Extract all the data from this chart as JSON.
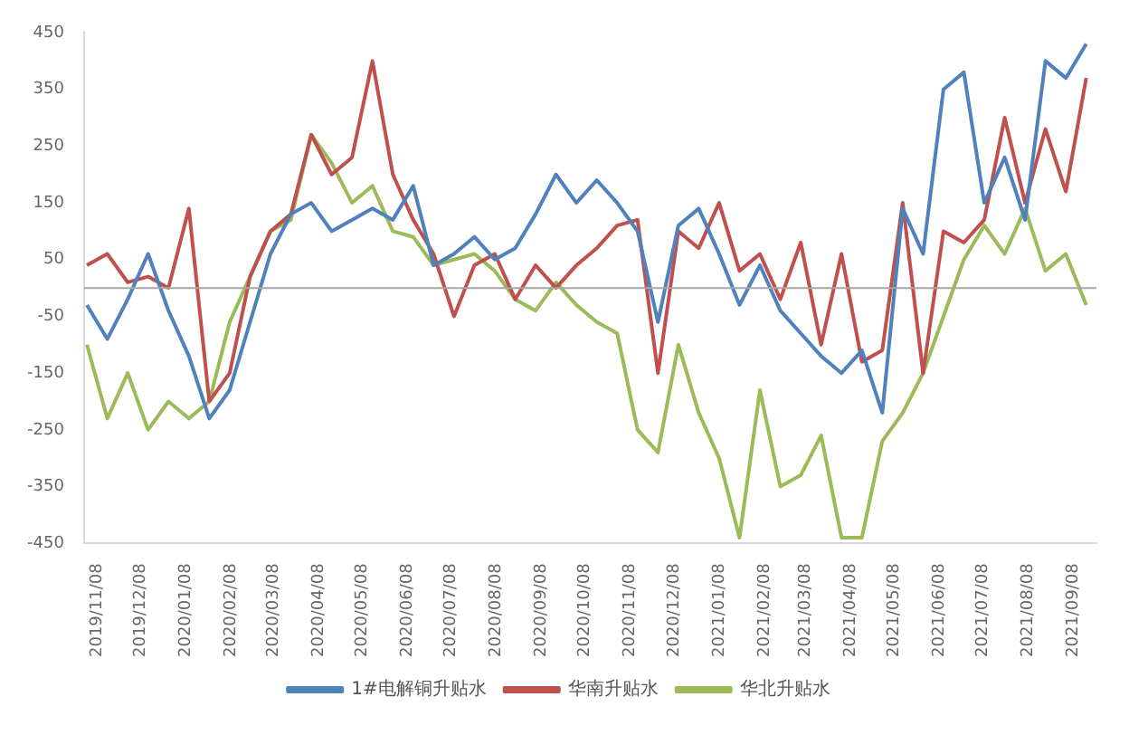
{
  "chart_data": {
    "type": "line",
    "x": [
      "2019-11-01",
      "2019-11-15",
      "2019-11-29",
      "2019-12-13",
      "2019-12-27",
      "2020-01-10",
      "2020-01-24",
      "2020-02-07",
      "2020-02-21",
      "2020-03-06",
      "2020-03-20",
      "2020-04-03",
      "2020-04-17",
      "2020-05-01",
      "2020-05-15",
      "2020-05-29",
      "2020-06-12",
      "2020-06-26",
      "2020-07-10",
      "2020-07-24",
      "2020-08-07",
      "2020-08-21",
      "2020-09-04",
      "2020-09-18",
      "2020-10-02",
      "2020-10-16",
      "2020-10-30",
      "2020-11-13",
      "2020-11-27",
      "2020-12-11",
      "2020-12-25",
      "2021-01-08",
      "2021-01-22",
      "2021-02-05",
      "2021-02-19",
      "2021-03-05",
      "2021-03-19",
      "2021-04-02",
      "2021-04-16",
      "2021-04-30",
      "2021-05-14",
      "2021-05-28",
      "2021-06-11",
      "2021-06-25",
      "2021-07-09",
      "2021-07-23",
      "2021-08-06",
      "2021-08-20",
      "2021-09-03",
      "2021-09-17"
    ],
    "series": [
      {
        "name": "1#电解铜升贴水",
        "color": "#4f81bd",
        "values": [
          -30,
          -90,
          -20,
          60,
          -40,
          -120,
          -230,
          -180,
          -60,
          60,
          130,
          150,
          100,
          120,
          140,
          120,
          180,
          40,
          60,
          90,
          50,
          70,
          130,
          200,
          150,
          190,
          150,
          100,
          -60,
          110,
          140,
          60,
          -30,
          40,
          -40,
          -80,
          -120,
          -150,
          -110,
          -220,
          140,
          60,
          350,
          380,
          150,
          230,
          120,
          400,
          370,
          430
        ]
      },
      {
        "name": "华南升贴水",
        "color": "#c0504d",
        "values": [
          40,
          60,
          10,
          20,
          0,
          140,
          -200,
          -150,
          20,
          100,
          130,
          270,
          200,
          230,
          400,
          200,
          120,
          60,
          -50,
          40,
          60,
          -20,
          40,
          0,
          40,
          70,
          110,
          120,
          -150,
          100,
          70,
          150,
          30,
          60,
          -20,
          80,
          -100,
          60,
          -130,
          -110,
          150,
          -150,
          100,
          80,
          120,
          300,
          150,
          280,
          170,
          370
        ]
      },
      {
        "name": "华北升贴水",
        "color": "#9bbb59",
        "values": [
          -100,
          -230,
          -150,
          -250,
          -200,
          -230,
          -200,
          -60,
          20,
          100,
          120,
          270,
          220,
          150,
          180,
          100,
          90,
          40,
          50,
          60,
          30,
          -20,
          -40,
          10,
          -30,
          -60,
          -80,
          -250,
          -290,
          -100,
          -220,
          -300,
          -440,
          -180,
          -350,
          -330,
          -260,
          -440,
          -440,
          -270,
          -220,
          -150,
          -50,
          50,
          110,
          60,
          140,
          30,
          60,
          -30
        ]
      }
    ],
    "xlim": [
      "2019-10-30",
      "2021-09-24"
    ],
    "xticks": [
      {
        "value": "2019-11-08",
        "label": "2019/11/08"
      },
      {
        "value": "2019-12-08",
        "label": "2019/12/08"
      },
      {
        "value": "2020-01-08",
        "label": "2020/01/08"
      },
      {
        "value": "2020-02-08",
        "label": "2020/02/08"
      },
      {
        "value": "2020-03-08",
        "label": "2020/03/08"
      },
      {
        "value": "2020-04-08",
        "label": "2020/04/08"
      },
      {
        "value": "2020-05-08",
        "label": "2020/05/08"
      },
      {
        "value": "2020-06-08",
        "label": "2020/06/08"
      },
      {
        "value": "2020-07-08",
        "label": "2020/07/08"
      },
      {
        "value": "2020-08-08",
        "label": "2020/08/08"
      },
      {
        "value": "2020-09-08",
        "label": "2020/09/08"
      },
      {
        "value": "2020-10-08",
        "label": "2020/10/08"
      },
      {
        "value": "2020-11-08",
        "label": "2020/11/08"
      },
      {
        "value": "2020-12-08",
        "label": "2020/12/08"
      },
      {
        "value": "2021-01-08",
        "label": "2021/01/08"
      },
      {
        "value": "2021-02-08",
        "label": "2021/02/08"
      },
      {
        "value": "2021-03-08",
        "label": "2021/03/08"
      },
      {
        "value": "2021-04-08",
        "label": "2021/04/08"
      },
      {
        "value": "2021-05-08",
        "label": "2021/05/08"
      },
      {
        "value": "2021-06-08",
        "label": "2021/06/08"
      },
      {
        "value": "2021-07-08",
        "label": "2021/07/08"
      },
      {
        "value": "2021-08-08",
        "label": "2021/08/08"
      },
      {
        "value": "2021-09-08",
        "label": "2021/09/08"
      }
    ],
    "ylim": [
      -450,
      450
    ],
    "yticks": [
      -450,
      -350,
      -250,
      -150,
      -50,
      50,
      150,
      250,
      350,
      450
    ],
    "ref_lines": [
      {
        "axis": "y",
        "value": 0,
        "color": "#a6a6a6"
      }
    ],
    "grid": false,
    "legend": "bottom",
    "marker": "none",
    "line_style": "solid"
  }
}
